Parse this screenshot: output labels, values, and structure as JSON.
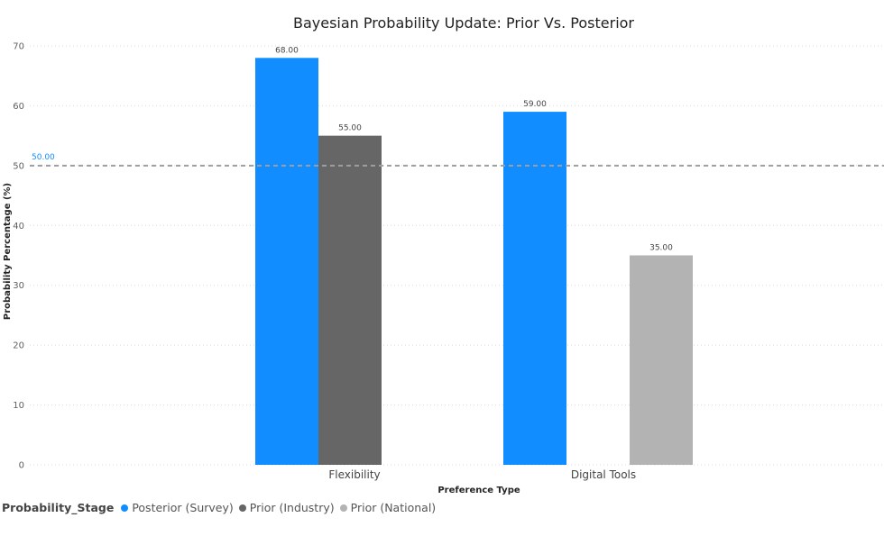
{
  "chart_data": {
    "type": "bar",
    "title": "Bayesian Probability Update: Prior Vs. Posterior",
    "xlabel": "Preference Type",
    "ylabel": "Probability Percentage (%)",
    "categories": [
      "Flexibility",
      "Digital Tools"
    ],
    "series": [
      {
        "name": "Posterior (Survey)",
        "color": "#118DFF",
        "values": [
          68,
          59
        ],
        "labels": [
          "68.00",
          "59.00"
        ]
      },
      {
        "name": "Prior (Industry)",
        "color": "#666666",
        "values": [
          55,
          null
        ],
        "labels": [
          "55.00",
          ""
        ]
      },
      {
        "name": "Prior (National)",
        "color": "#B3B3B3",
        "values": [
          null,
          35
        ],
        "labels": [
          "",
          "35.00"
        ]
      }
    ],
    "ylim": [
      0,
      70
    ],
    "yticks": [
      "0",
      "10",
      "20",
      "30",
      "40",
      "50",
      "60",
      "70"
    ],
    "grid": true,
    "reference_line": {
      "value": 50,
      "label": "50.00",
      "color": "#118DFF",
      "style": "dashed"
    },
    "legend": {
      "title": "Probability_Stage",
      "position": "bottom-left"
    }
  }
}
